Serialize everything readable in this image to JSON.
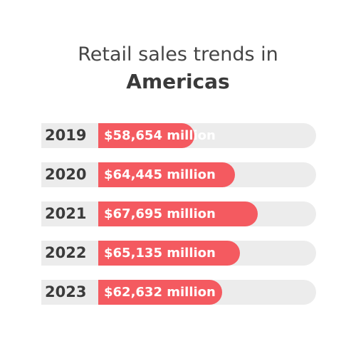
{
  "title": {
    "line1": "Retail sales trends in",
    "line2": "Americas"
  },
  "colors": {
    "bar": "#f45a60",
    "track": "#ececec",
    "text": "#3a3a3a"
  },
  "chart_data": {
    "type": "bar",
    "orientation": "horizontal",
    "title": "Retail sales trends in Americas",
    "categories": [
      "2019",
      "2020",
      "2021",
      "2022",
      "2023"
    ],
    "values": [
      58654,
      64445,
      67695,
      65135,
      62632
    ],
    "labels": [
      "$58,654 million",
      "$64,445 million",
      "$67,695 million",
      "$65,135 million",
      "$62,632 million"
    ],
    "unit": "million USD",
    "grid": false,
    "legend": "none"
  }
}
